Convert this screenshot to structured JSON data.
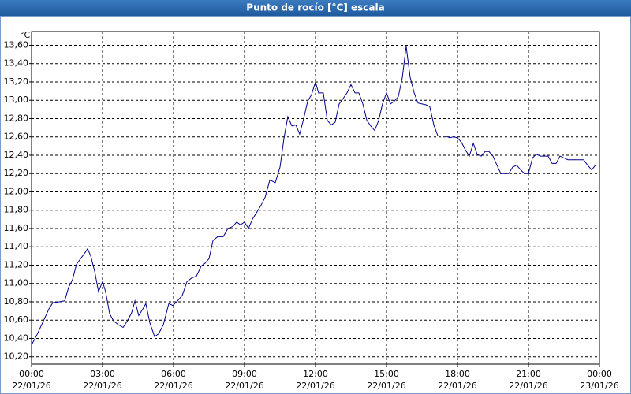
{
  "chart_data": {
    "type": "line",
    "title": "Punto de rocío [°C] escala",
    "y_label": "°C",
    "x": [
      0,
      0.23,
      0.5,
      0.73,
      0.9,
      1.17,
      1.4,
      1.57,
      1.73,
      1.9,
      2.1,
      2.27,
      2.37,
      2.5,
      2.67,
      2.83,
      3.0,
      3.13,
      3.3,
      3.47,
      3.67,
      3.87,
      4.07,
      4.23,
      4.37,
      4.53,
      4.7,
      4.83,
      5.0,
      5.2,
      5.37,
      5.57,
      5.8,
      5.97,
      6.17,
      6.37,
      6.57,
      6.77,
      6.97,
      7.17,
      7.33,
      7.5,
      7.67,
      7.87,
      8.1,
      8.3,
      8.5,
      8.67,
      8.83,
      9.0,
      9.17,
      9.33,
      9.5,
      9.67,
      9.87,
      10.07,
      10.3,
      10.5,
      10.67,
      10.83,
      11.0,
      11.17,
      11.33,
      11.5,
      11.67,
      11.83,
      12.0,
      12.13,
      12.33,
      12.5,
      12.67,
      12.83,
      13.0,
      13.17,
      13.33,
      13.5,
      13.67,
      13.83,
      14.0,
      14.17,
      14.33,
      14.5,
      14.67,
      14.83,
      15.0,
      15.17,
      15.33,
      15.5,
      15.67,
      15.83,
      16.0,
      16.17,
      16.33,
      16.5,
      16.67,
      16.83,
      17.0,
      17.17,
      17.33,
      17.5,
      17.67,
      17.83,
      18.0,
      18.17,
      18.33,
      18.5,
      18.67,
      18.83,
      19.0,
      19.17,
      19.33,
      19.5,
      19.67,
      19.83,
      20.0,
      20.17,
      20.33,
      20.5,
      20.67,
      20.83,
      21.0,
      21.17,
      21.33,
      21.5,
      21.67,
      21.83,
      22.0,
      22.17,
      22.33,
      22.5,
      22.67,
      22.83,
      23.0,
      23.17,
      23.33,
      23.5,
      23.67,
      23.83
    ],
    "series": [
      {
        "name": "Punto de rocío",
        "color": "#00008b",
        "values": [
          10.33,
          10.44,
          10.59,
          10.72,
          10.79,
          10.8,
          10.81,
          10.96,
          11.04,
          11.21,
          11.28,
          11.34,
          11.38,
          11.3,
          11.13,
          10.91,
          11.02,
          10.91,
          10.67,
          10.59,
          10.55,
          10.52,
          10.6,
          10.68,
          10.81,
          10.65,
          10.72,
          10.78,
          10.57,
          10.42,
          10.45,
          10.55,
          10.78,
          10.76,
          10.81,
          10.87,
          11.02,
          11.06,
          11.08,
          11.19,
          11.22,
          11.27,
          11.47,
          11.51,
          11.51,
          11.6,
          11.62,
          11.67,
          11.64,
          11.67,
          11.6,
          11.7,
          11.77,
          11.84,
          11.94,
          12.13,
          12.1,
          12.27,
          12.59,
          12.82,
          12.72,
          12.73,
          12.63,
          12.8,
          12.99,
          13.06,
          13.2,
          13.08,
          13.08,
          12.78,
          12.73,
          12.76,
          12.96,
          13.02,
          13.08,
          13.17,
          13.08,
          13.08,
          12.96,
          12.78,
          12.72,
          12.67,
          12.78,
          12.96,
          13.08,
          12.96,
          12.99,
          13.04,
          13.25,
          13.59,
          13.25,
          13.08,
          12.97,
          12.96,
          12.95,
          12.93,
          12.73,
          12.61,
          12.61,
          12.61,
          12.59,
          12.6,
          12.59,
          12.54,
          12.46,
          12.39,
          12.53,
          12.41,
          12.39,
          12.44,
          12.44,
          12.39,
          12.29,
          12.2,
          12.2,
          12.2,
          12.27,
          12.29,
          12.24,
          12.2,
          12.2,
          12.37,
          12.41,
          12.39,
          12.39,
          12.39,
          12.31,
          12.31,
          12.39,
          12.37,
          12.35,
          12.35,
          12.35,
          12.35,
          12.35,
          12.29,
          12.24,
          12.29
        ]
      }
    ],
    "xlim": [
      0,
      24
    ],
    "ylim": [
      10.12,
      13.75
    ],
    "xticks": [
      {
        "value": 0,
        "label": "00:00",
        "date": "22/01/26"
      },
      {
        "value": 3,
        "label": "03:00",
        "date": "22/01/26"
      },
      {
        "value": 6,
        "label": "06:00",
        "date": "22/01/26"
      },
      {
        "value": 9,
        "label": "09:00",
        "date": "22/01/26"
      },
      {
        "value": 12,
        "label": "12:00",
        "date": "22/01/26"
      },
      {
        "value": 15,
        "label": "15:00",
        "date": "22/01/26"
      },
      {
        "value": 18,
        "label": "18:00",
        "date": "22/01/26"
      },
      {
        "value": 21,
        "label": "21:00",
        "date": "22/01/26"
      },
      {
        "value": 24,
        "label": "00:00",
        "date": "23/01/26"
      }
    ],
    "yticks": [
      {
        "value": 10.2,
        "label": "10,20"
      },
      {
        "value": 10.4,
        "label": "10,40"
      },
      {
        "value": 10.6,
        "label": "10,60"
      },
      {
        "value": 10.8,
        "label": "10,80"
      },
      {
        "value": 11,
        "label": "11,00"
      },
      {
        "value": 11.2,
        "label": "11,20"
      },
      {
        "value": 11.4,
        "label": "11,40"
      },
      {
        "value": 11.6,
        "label": "11,60"
      },
      {
        "value": 11.8,
        "label": "11,80"
      },
      {
        "value": 12,
        "label": "12,00"
      },
      {
        "value": 12.2,
        "label": "12,20"
      },
      {
        "value": 12.4,
        "label": "12,40"
      },
      {
        "value": 12.6,
        "label": "12,60"
      },
      {
        "value": 12.8,
        "label": "12,80"
      },
      {
        "value": 13,
        "label": "13,00"
      },
      {
        "value": 13.2,
        "label": "13,20"
      },
      {
        "value": 13.4,
        "label": "13,40"
      },
      {
        "value": 13.6,
        "label": "13,60"
      }
    ],
    "grid": true
  }
}
